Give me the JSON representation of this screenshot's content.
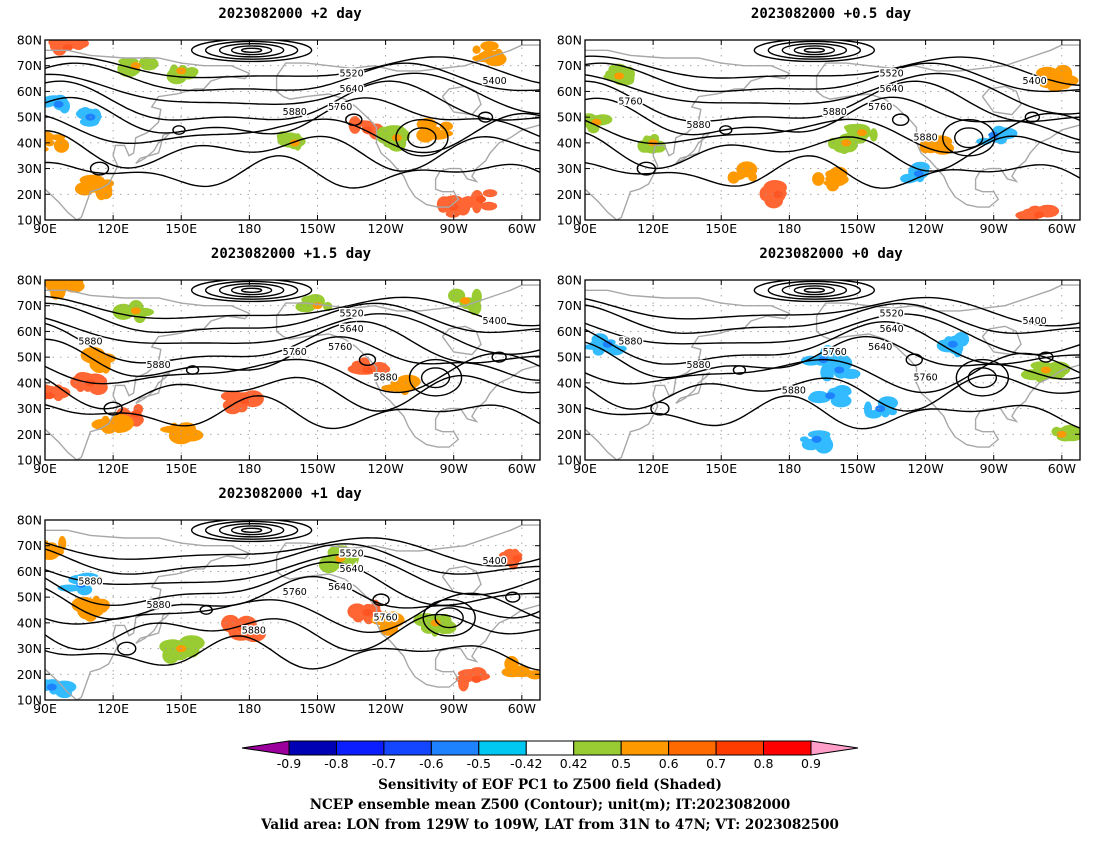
{
  "colors": {
    "land": "#a8a8a8",
    "contour": "#000000",
    "grid": "#9a9a9a",
    "shade_pos_weak": "#99cc33",
    "shade_pos_mid": "#ff9900",
    "shade_pos_strong": "#ff6633",
    "shade_neg": "#33bbff"
  },
  "chart_data": [
    {
      "type": "heatmap",
      "title": "2023082000  +2 day",
      "lon_ticks": [
        "90E",
        "120E",
        "150E",
        "180",
        "150W",
        "120W",
        "90W",
        "60W"
      ],
      "lat_ticks": [
        "10N",
        "20N",
        "30N",
        "40N",
        "50N",
        "60N",
        "70N",
        "80N"
      ],
      "contour_labels": [
        "5400",
        "5520",
        "5640",
        "5760",
        "5880"
      ],
      "shading": [
        {
          "lon": 100,
          "lat": 77,
          "value": 0.7
        },
        {
          "lon": 130,
          "lat": 70,
          "value": 0.5
        },
        {
          "lon": 112,
          "lat": 23,
          "value": 0.6
        },
        {
          "lon": 92,
          "lat": 40,
          "value": 0.6
        },
        {
          "lon": 232,
          "lat": 45,
          "value": 0.7
        },
        {
          "lon": 245,
          "lat": 42,
          "value": 0.5
        },
        {
          "lon": 270,
          "lat": 15,
          "value": 0.7
        },
        {
          "lon": 282,
          "lat": 18,
          "value": 0.8
        },
        {
          "lon": 262,
          "lat": 45,
          "value": 0.6
        },
        {
          "lon": 150,
          "lat": 68,
          "value": 0.5
        },
        {
          "lon": 200,
          "lat": 40,
          "value": 0.5
        },
        {
          "lon": 285,
          "lat": 75,
          "value": 0.6
        },
        {
          "lon": 110,
          "lat": 50,
          "value": -0.6
        },
        {
          "lon": 96,
          "lat": 55,
          "value": -0.5
        }
      ]
    },
    {
      "type": "heatmap",
      "title": "2023082000  +0.5 day",
      "lon_ticks": [
        "90E",
        "120E",
        "150E",
        "180",
        "150W",
        "120W",
        "90W",
        "60W"
      ],
      "lat_ticks": [
        "10N",
        "20N",
        "30N",
        "40N",
        "50N",
        "60N",
        "70N",
        "80N"
      ],
      "contour_labels": [
        "5400",
        "5520",
        "5640",
        "5760",
        "5880",
        "5880",
        "5760",
        "5880"
      ],
      "shading": [
        {
          "lon": 160,
          "lat": 28,
          "value": 0.6
        },
        {
          "lon": 175,
          "lat": 20,
          "value": 0.7
        },
        {
          "lon": 198,
          "lat": 26,
          "value": 0.6
        },
        {
          "lon": 205,
          "lat": 40,
          "value": 0.5
        },
        {
          "lon": 212,
          "lat": 44,
          "value": 0.5
        },
        {
          "lon": 245,
          "lat": 40,
          "value": 0.6
        },
        {
          "lon": 237,
          "lat": 28,
          "value": -0.6
        },
        {
          "lon": 270,
          "lat": 43,
          "value": -0.5
        },
        {
          "lon": 298,
          "lat": 65,
          "value": 0.6
        },
        {
          "lon": 290,
          "lat": 12,
          "value": 0.7
        },
        {
          "lon": 120,
          "lat": 40,
          "value": 0.5
        },
        {
          "lon": 95,
          "lat": 48,
          "value": 0.5
        },
        {
          "lon": 105,
          "lat": 66,
          "value": 0.5
        }
      ]
    },
    {
      "type": "heatmap",
      "title": "2023082000  +1.5 day",
      "lon_ticks": [
        "90E",
        "120E",
        "150E",
        "180",
        "150W",
        "120W",
        "90W",
        "60W"
      ],
      "lat_ticks": [
        "10N",
        "20N",
        "30N",
        "40N",
        "50N",
        "60N",
        "70N",
        "80N"
      ],
      "contour_labels": [
        "5400",
        "5520",
        "5640",
        "5760",
        "5760",
        "5880",
        "5880",
        "5880"
      ],
      "shading": [
        {
          "lon": 100,
          "lat": 77,
          "value": 0.6
        },
        {
          "lon": 130,
          "lat": 68,
          "value": 0.5
        },
        {
          "lon": 110,
          "lat": 40,
          "value": 0.7
        },
        {
          "lon": 92,
          "lat": 35,
          "value": 0.7
        },
        {
          "lon": 130,
          "lat": 28,
          "value": 0.7
        },
        {
          "lon": 118,
          "lat": 22,
          "value": 0.6
        },
        {
          "lon": 150,
          "lat": 22,
          "value": 0.6
        },
        {
          "lon": 178,
          "lat": 33,
          "value": 0.7
        },
        {
          "lon": 232,
          "lat": 45,
          "value": 0.8
        },
        {
          "lon": 245,
          "lat": 40,
          "value": 0.6
        },
        {
          "lon": 210,
          "lat": 70,
          "value": 0.5
        },
        {
          "lon": 275,
          "lat": 72,
          "value": 0.5
        },
        {
          "lon": 112,
          "lat": 48,
          "value": 0.6
        }
      ]
    },
    {
      "type": "heatmap",
      "title": "2023082000  +0 day",
      "lon_ticks": [
        "90E",
        "120E",
        "150E",
        "180",
        "150W",
        "120W",
        "90W",
        "60W"
      ],
      "lat_ticks": [
        "10N",
        "20N",
        "30N",
        "40N",
        "50N",
        "60N",
        "70N",
        "80N"
      ],
      "contour_labels": [
        "5400",
        "5520",
        "5640",
        "5640",
        "5760",
        "5760",
        "5880",
        "5880",
        "5880"
      ],
      "shading": [
        {
          "lon": 195,
          "lat": 49,
          "value": -0.8
        },
        {
          "lon": 202,
          "lat": 45,
          "value": -0.6
        },
        {
          "lon": 100,
          "lat": 55,
          "value": -0.5
        },
        {
          "lon": 192,
          "lat": 18,
          "value": -0.5
        },
        {
          "lon": 198,
          "lat": 35,
          "value": -0.5
        },
        {
          "lon": 252,
          "lat": 55,
          "value": -0.5
        },
        {
          "lon": 293,
          "lat": 45,
          "value": 0.5
        },
        {
          "lon": 300,
          "lat": 20,
          "value": 0.5
        },
        {
          "lon": 220,
          "lat": 30,
          "value": -0.5
        }
      ]
    },
    {
      "type": "heatmap",
      "title": "2023082000  +1 day",
      "lon_ticks": [
        "90E",
        "120E",
        "150E",
        "180",
        "150W",
        "120W",
        "90W",
        "60W"
      ],
      "lat_ticks": [
        "10N",
        "20N",
        "30N",
        "40N",
        "50N",
        "60N",
        "70N",
        "80N"
      ],
      "contour_labels": [
        "5400",
        "5520",
        "5640",
        "5640",
        "5760",
        "5760",
        "5880",
        "5880",
        "5880"
      ],
      "shading": [
        {
          "lon": 93,
          "lat": 15,
          "value": -0.6
        },
        {
          "lon": 106,
          "lat": 55,
          "value": -0.6
        },
        {
          "lon": 93,
          "lat": 70,
          "value": 0.6
        },
        {
          "lon": 110,
          "lat": 45,
          "value": 0.6
        },
        {
          "lon": 232,
          "lat": 44,
          "value": 0.8
        },
        {
          "lon": 242,
          "lat": 40,
          "value": 0.6
        },
        {
          "lon": 177,
          "lat": 38,
          "value": 0.7
        },
        {
          "lon": 298,
          "lat": 65,
          "value": 0.7
        },
        {
          "lon": 280,
          "lat": 18,
          "value": 0.7
        },
        {
          "lon": 300,
          "lat": 22,
          "value": 0.6
        },
        {
          "lon": 262,
          "lat": 40,
          "value": 0.5
        },
        {
          "lon": 150,
          "lat": 30,
          "value": 0.5
        },
        {
          "lon": 220,
          "lat": 65,
          "value": 0.5
        }
      ]
    }
  ],
  "colorbar": {
    "ticks": [
      "-0.9",
      "-0.8",
      "-0.7",
      "-0.6",
      "-0.5",
      "-0.42",
      "0.42",
      "0.5",
      "0.6",
      "0.7",
      "0.8",
      "0.9"
    ],
    "colors": [
      "#9c009c",
      "#0000b4",
      "#0a1eff",
      "#1446ff",
      "#1e82ff",
      "#00c8f0",
      "#ffffff",
      "#99cc33",
      "#ff9900",
      "#ff6a00",
      "#ff3c00",
      "#ff0000",
      "#ff9ec8"
    ]
  },
  "footer": {
    "line1": "Sensitivity of EOF PC1 to Z500 field (Shaded)",
    "line2": "NCEP ensemble mean Z500 (Contour); unit(m); IT:2023082000",
    "line3": "Valid area: LON from 129W to 109W, LAT from 31N to 47N; VT: 2023082500"
  }
}
